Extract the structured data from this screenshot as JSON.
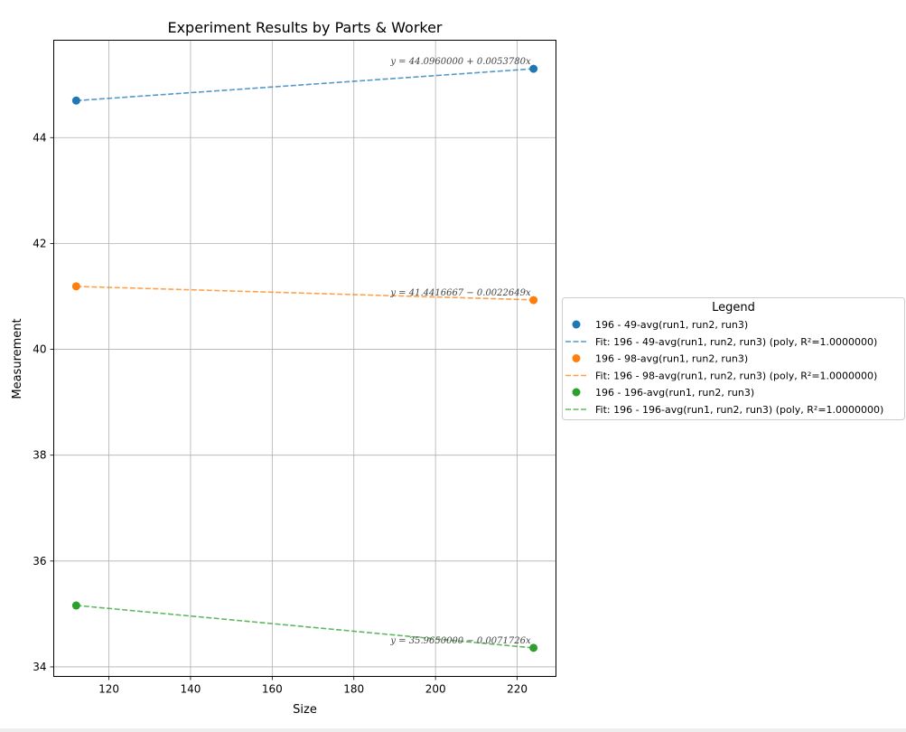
{
  "chart_data": {
    "type": "scatter",
    "title": "Experiment Results by Parts & Worker",
    "xlabel": "Size",
    "ylabel": "Measurement",
    "xlim": [
      106.5,
      229.5
    ],
    "ylim": [
      33.82,
      45.84
    ],
    "xticks": [
      120,
      140,
      160,
      180,
      200,
      220
    ],
    "yticks": [
      34,
      36,
      38,
      40,
      42,
      44
    ],
    "grid": true,
    "legend_placement": "right, outside plot",
    "legend_title": "Legend",
    "series": [
      {
        "name": "196 - 49-avg(run1, run2, run3)",
        "fit_name": "Fit: 196 - 49-avg(run1, run2, run3) (poly, R²=1.0000000)",
        "color": "#1f77b4",
        "x": [
          112,
          224
        ],
        "y": [
          44.7,
          45.3
        ],
        "fit_intercept": 44.096,
        "fit_slope": 0.005378,
        "equation": "y = 44.0960000 + 0.0053780x"
      },
      {
        "name": "196 - 98-avg(run1, run2, run3)",
        "fit_name": "Fit: 196 - 98-avg(run1, run2, run3) (poly, R²=1.0000000)",
        "color": "#ff7f0e",
        "x": [
          112,
          224
        ],
        "y": [
          41.19,
          40.93
        ],
        "fit_intercept": 41.4416667,
        "fit_slope": -0.0022649,
        "equation": "y = 41.4416667 − 0.0022649x"
      },
      {
        "name": "196 - 196-avg(run1, run2, run3)",
        "fit_name": "Fit: 196 - 196-avg(run1, run2, run3) (poly, R²=1.0000000)",
        "color": "#2ca02c",
        "x": [
          112,
          224
        ],
        "y": [
          35.16,
          34.36
        ],
        "fit_intercept": 35.965,
        "fit_slope": -0.0071726,
        "equation": "y = 35.9650000 − 0.0071726x"
      }
    ]
  }
}
